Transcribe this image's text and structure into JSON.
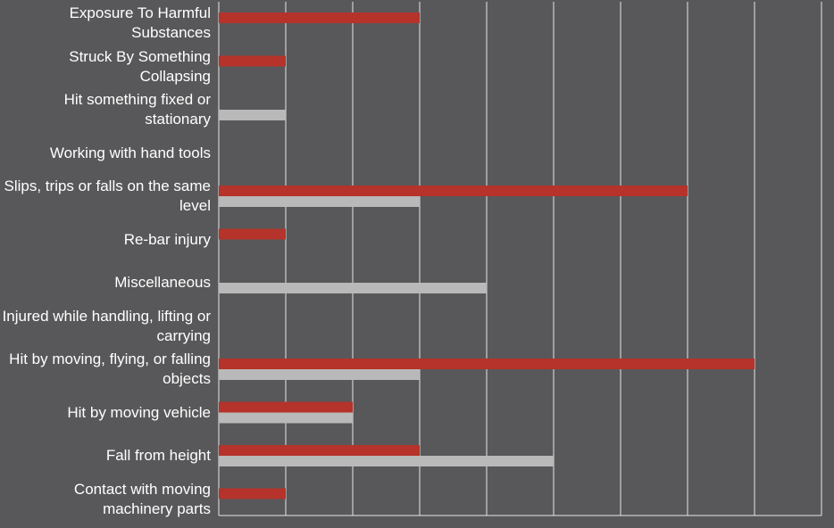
{
  "chart_data": {
    "type": "bar",
    "orientation": "horizontal",
    "categories": [
      "Exposure To Harmful Substances",
      "Struck By Something Collapsing",
      "Hit something fixed or stationary",
      "Working with hand tools",
      "Slips, trips or falls on the same level",
      "Re-bar injury",
      "Miscellaneous",
      "Injured while handling, lifting or carrying",
      "Hit by moving, flying, or falling objects",
      "Hit by moving vehicle",
      "Fall from height",
      "Contact with moving machinery parts"
    ],
    "series": [
      {
        "color": "#b5332a",
        "values": [
          3,
          1,
          null,
          null,
          7,
          1,
          null,
          null,
          8,
          2,
          3,
          1
        ]
      },
      {
        "color": "#b9b9b9",
        "values": [
          null,
          null,
          1,
          null,
          3,
          null,
          4,
          null,
          3,
          2,
          5,
          null
        ]
      }
    ],
    "xlim": [
      0,
      9
    ],
    "xticks": [
      0,
      1,
      2,
      3,
      4,
      5,
      6,
      7,
      8,
      9
    ],
    "grid": true
  }
}
